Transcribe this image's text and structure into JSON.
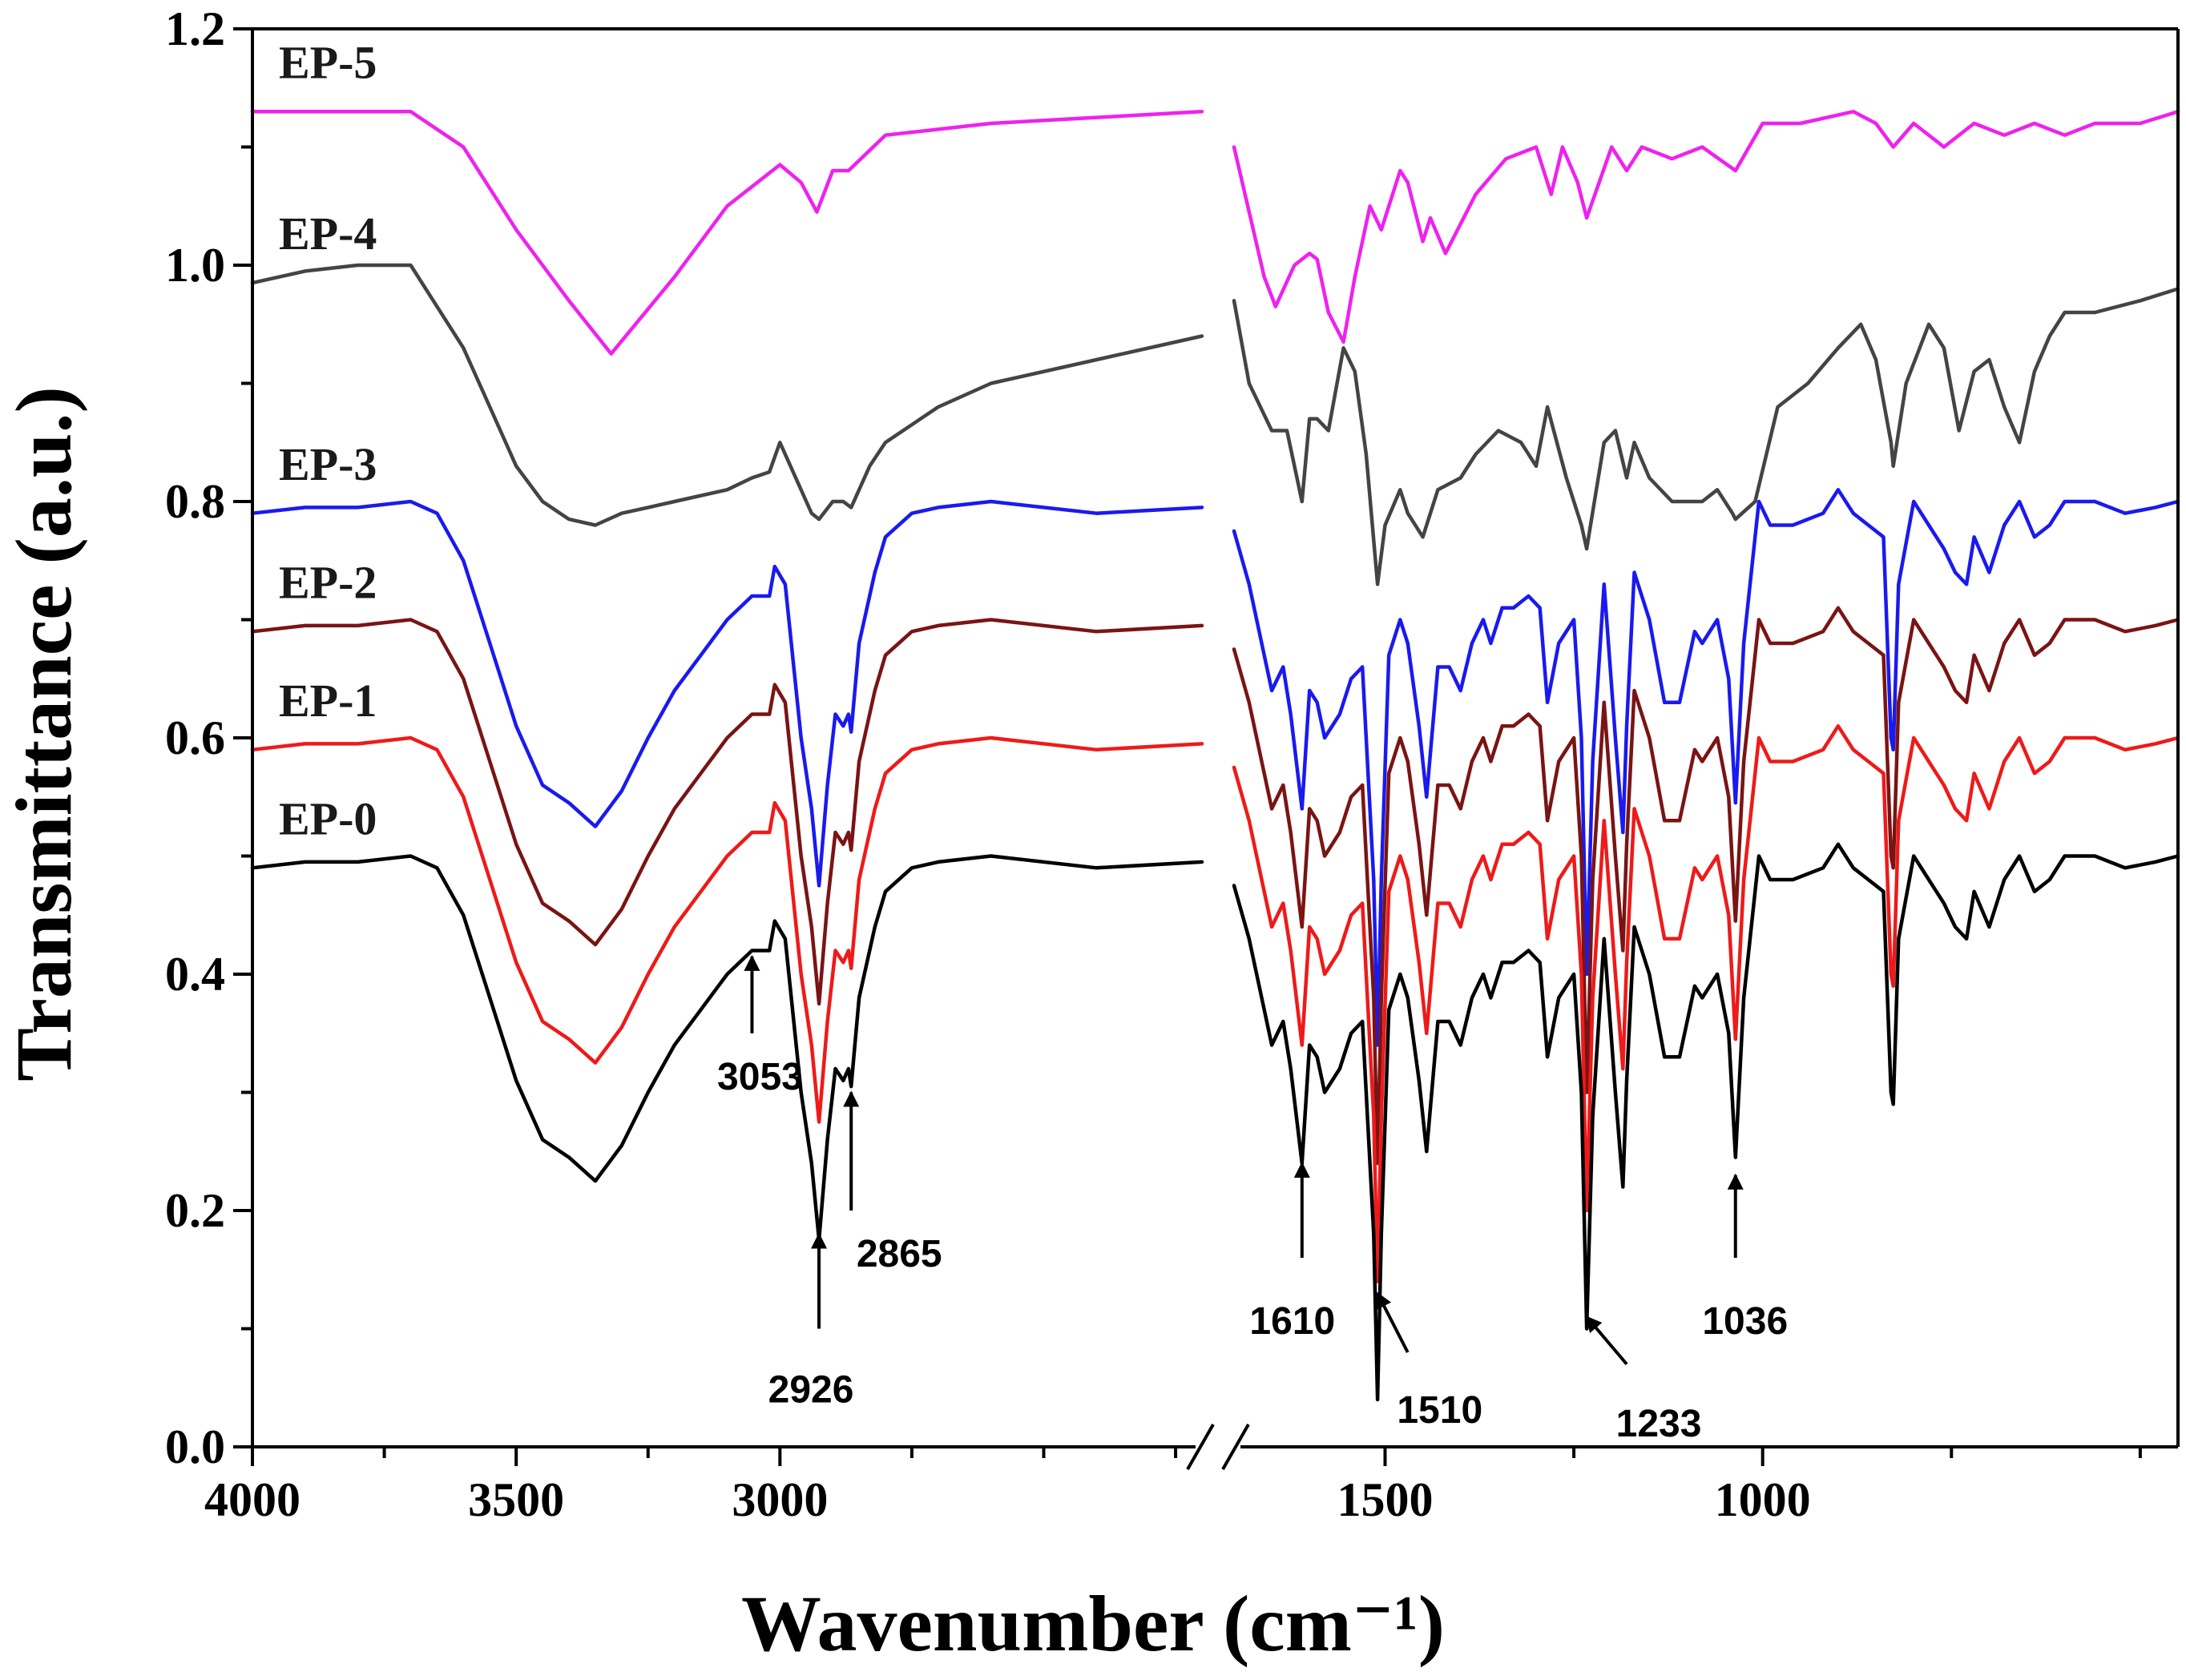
{
  "chart_data": {
    "type": "line",
    "xlabel": "Wavenumber (cm⁻¹)",
    "ylabel": "Transmittance (a.u.)",
    "ylim": [
      0,
      1.2
    ],
    "x_segments": [
      [
        4000,
        2200
      ],
      [
        1700,
        450
      ]
    ],
    "x_ticks": [
      4000,
      3500,
      3000,
      1500,
      1000
    ],
    "x_tick_labels": [
      "4000",
      "3500",
      "3000",
      "1500",
      "1000"
    ],
    "y_ticks": [
      0.0,
      0.2,
      0.4,
      0.6,
      0.8,
      1.0,
      1.2
    ],
    "y_tick_labels": [
      "0.0",
      "0.2",
      "0.4",
      "0.6",
      "0.8",
      "1.0",
      "1.2"
    ],
    "broken_x_axis": true,
    "reference": {
      "name": "EP-0",
      "x": [
        4000,
        3900,
        3800,
        3700,
        3650,
        3600,
        3550,
        3500,
        3450,
        3400,
        3350,
        3300,
        3250,
        3200,
        3150,
        3100,
        3053,
        3020,
        3010,
        2990,
        2960,
        2940,
        2926,
        2910,
        2895,
        2880,
        2870,
        2865,
        2850,
        2820,
        2800,
        2750,
        2700,
        2600,
        2400,
        2200,
        1700,
        1680,
        1650,
        1635,
        1625,
        1610,
        1600,
        1590,
        1580,
        1560,
        1545,
        1530,
        1515,
        1510,
        1505,
        1495,
        1480,
        1470,
        1455,
        1445,
        1430,
        1415,
        1400,
        1385,
        1370,
        1360,
        1345,
        1330,
        1310,
        1295,
        1285,
        1270,
        1250,
        1240,
        1233,
        1225,
        1210,
        1195,
        1185,
        1180,
        1170,
        1150,
        1130,
        1110,
        1090,
        1080,
        1060,
        1045,
        1036,
        1025,
        1005,
        990,
        960,
        920,
        900,
        880,
        860,
        840,
        830,
        827,
        820,
        800,
        780,
        760,
        745,
        730,
        720,
        700,
        680,
        660,
        640,
        620,
        600,
        560,
        520,
        480,
        450
      ],
      "y": [
        0.49,
        0.495,
        0.495,
        0.5,
        0.49,
        0.45,
        0.38,
        0.31,
        0.26,
        0.245,
        0.225,
        0.255,
        0.3,
        0.34,
        0.37,
        0.4,
        0.42,
        0.42,
        0.445,
        0.43,
        0.3,
        0.24,
        0.175,
        0.26,
        0.32,
        0.31,
        0.32,
        0.305,
        0.38,
        0.44,
        0.47,
        0.49,
        0.495,
        0.5,
        0.49,
        0.495,
        0.475,
        0.43,
        0.34,
        0.36,
        0.32,
        0.24,
        0.34,
        0.33,
        0.3,
        0.32,
        0.35,
        0.36,
        0.18,
        0.04,
        0.18,
        0.37,
        0.4,
        0.38,
        0.31,
        0.25,
        0.36,
        0.36,
        0.34,
        0.38,
        0.4,
        0.38,
        0.41,
        0.41,
        0.42,
        0.41,
        0.33,
        0.38,
        0.4,
        0.3,
        0.1,
        0.28,
        0.43,
        0.3,
        0.22,
        0.31,
        0.44,
        0.4,
        0.33,
        0.33,
        0.39,
        0.38,
        0.4,
        0.35,
        0.245,
        0.38,
        0.5,
        0.48,
        0.48,
        0.49,
        0.51,
        0.49,
        0.48,
        0.47,
        0.3,
        0.29,
        0.43,
        0.5,
        0.48,
        0.46,
        0.44,
        0.43,
        0.47,
        0.44,
        0.48,
        0.5,
        0.47,
        0.48,
        0.5,
        0.5,
        0.49,
        0.495,
        0.5
      ]
    },
    "series": [
      {
        "name": "EP-5",
        "label": "EP-5",
        "color": "#ee22ee",
        "offset": 0.63,
        "scale": 0.35,
        "left": [
          [
            4000,
            1.13
          ],
          [
            3800,
            1.13
          ],
          [
            3700,
            1.13
          ],
          [
            3600,
            1.1
          ],
          [
            3500,
            1.03
          ],
          [
            3400,
            0.97
          ],
          [
            3320,
            0.925
          ],
          [
            3200,
            0.99
          ],
          [
            3100,
            1.05
          ],
          [
            3000,
            1.085
          ],
          [
            2960,
            1.07
          ],
          [
            2930,
            1.045
          ],
          [
            2900,
            1.08
          ],
          [
            2870,
            1.08
          ],
          [
            2800,
            1.11
          ],
          [
            2600,
            1.12
          ],
          [
            2400,
            1.125
          ],
          [
            2200,
            1.13
          ]
        ],
        "right": [
          [
            1700,
            1.1
          ],
          [
            1660,
            0.99
          ],
          [
            1645,
            0.965
          ],
          [
            1620,
            1.0
          ],
          [
            1600,
            1.01
          ],
          [
            1590,
            1.005
          ],
          [
            1575,
            0.96
          ],
          [
            1555,
            0.935
          ],
          [
            1540,
            0.99
          ],
          [
            1520,
            1.05
          ],
          [
            1505,
            1.03
          ],
          [
            1480,
            1.08
          ],
          [
            1470,
            1.07
          ],
          [
            1450,
            1.02
          ],
          [
            1440,
            1.04
          ],
          [
            1420,
            1.01
          ],
          [
            1380,
            1.06
          ],
          [
            1340,
            1.09
          ],
          [
            1300,
            1.1
          ],
          [
            1280,
            1.06
          ],
          [
            1265,
            1.1
          ],
          [
            1245,
            1.07
          ],
          [
            1233,
            1.04
          ],
          [
            1200,
            1.1
          ],
          [
            1180,
            1.08
          ],
          [
            1160,
            1.1
          ],
          [
            1120,
            1.09
          ],
          [
            1080,
            1.1
          ],
          [
            1036,
            1.08
          ],
          [
            1000,
            1.12
          ],
          [
            950,
            1.12
          ],
          [
            880,
            1.13
          ],
          [
            850,
            1.12
          ],
          [
            827,
            1.1
          ],
          [
            800,
            1.12
          ],
          [
            760,
            1.1
          ],
          [
            720,
            1.12
          ],
          [
            680,
            1.11
          ],
          [
            640,
            1.12
          ],
          [
            600,
            1.11
          ],
          [
            560,
            1.12
          ],
          [
            500,
            1.12
          ],
          [
            450,
            1.13
          ]
        ]
      },
      {
        "name": "EP-4",
        "label": "EP-4",
        "color": "#444444",
        "offset": 0.5,
        "scale": 0.5,
        "left": [
          [
            4000,
            0.985
          ],
          [
            3900,
            0.995
          ],
          [
            3800,
            1.0
          ],
          [
            3700,
            1.0
          ],
          [
            3600,
            0.93
          ],
          [
            3550,
            0.88
          ],
          [
            3500,
            0.83
          ],
          [
            3450,
            0.8
          ],
          [
            3400,
            0.785
          ],
          [
            3350,
            0.78
          ],
          [
            3300,
            0.79
          ],
          [
            3250,
            0.795
          ],
          [
            3200,
            0.8
          ],
          [
            3100,
            0.81
          ],
          [
            3053,
            0.82
          ],
          [
            3020,
            0.825
          ],
          [
            3000,
            0.85
          ],
          [
            2980,
            0.83
          ],
          [
            2940,
            0.79
          ],
          [
            2926,
            0.785
          ],
          [
            2900,
            0.8
          ],
          [
            2880,
            0.8
          ],
          [
            2865,
            0.795
          ],
          [
            2830,
            0.83
          ],
          [
            2800,
            0.85
          ],
          [
            2700,
            0.88
          ],
          [
            2600,
            0.9
          ],
          [
            2400,
            0.92
          ],
          [
            2200,
            0.94
          ]
        ],
        "right": [
          [
            1700,
            0.97
          ],
          [
            1680,
            0.9
          ],
          [
            1650,
            0.86
          ],
          [
            1630,
            0.86
          ],
          [
            1610,
            0.8
          ],
          [
            1600,
            0.87
          ],
          [
            1590,
            0.87
          ],
          [
            1575,
            0.86
          ],
          [
            1555,
            0.93
          ],
          [
            1540,
            0.91
          ],
          [
            1525,
            0.84
          ],
          [
            1510,
            0.73
          ],
          [
            1500,
            0.78
          ],
          [
            1480,
            0.81
          ],
          [
            1470,
            0.79
          ],
          [
            1450,
            0.77
          ],
          [
            1430,
            0.81
          ],
          [
            1400,
            0.82
          ],
          [
            1380,
            0.84
          ],
          [
            1350,
            0.86
          ],
          [
            1320,
            0.85
          ],
          [
            1300,
            0.83
          ],
          [
            1285,
            0.88
          ],
          [
            1260,
            0.82
          ],
          [
            1240,
            0.78
          ],
          [
            1233,
            0.76
          ],
          [
            1210,
            0.85
          ],
          [
            1195,
            0.86
          ],
          [
            1180,
            0.82
          ],
          [
            1170,
            0.85
          ],
          [
            1150,
            0.82
          ],
          [
            1120,
            0.8
          ],
          [
            1100,
            0.8
          ],
          [
            1080,
            0.8
          ],
          [
            1060,
            0.81
          ],
          [
            1040,
            0.79
          ],
          [
            1036,
            0.785
          ],
          [
            1010,
            0.8
          ],
          [
            980,
            0.88
          ],
          [
            940,
            0.9
          ],
          [
            900,
            0.93
          ],
          [
            870,
            0.95
          ],
          [
            850,
            0.92
          ],
          [
            830,
            0.85
          ],
          [
            827,
            0.83
          ],
          [
            810,
            0.9
          ],
          [
            780,
            0.95
          ],
          [
            760,
            0.93
          ],
          [
            740,
            0.86
          ],
          [
            720,
            0.91
          ],
          [
            700,
            0.92
          ],
          [
            680,
            0.88
          ],
          [
            660,
            0.85
          ],
          [
            640,
            0.91
          ],
          [
            620,
            0.94
          ],
          [
            600,
            0.96
          ],
          [
            560,
            0.96
          ],
          [
            500,
            0.97
          ],
          [
            450,
            0.98
          ]
        ]
      },
      {
        "name": "EP-3",
        "label": "EP-3",
        "color": "#1a1aee",
        "offset": 0.3,
        "scale": 1.0
      },
      {
        "name": "EP-2",
        "label": "EP-2",
        "color": "#7a1414",
        "offset": 0.2,
        "scale": 1.0
      },
      {
        "name": "EP-1",
        "label": "EP-1",
        "color": "#ee1a1a",
        "offset": 0.1,
        "scale": 1.0
      },
      {
        "name": "EP-0",
        "label": "EP-0",
        "color": "#000000",
        "offset": 0.0,
        "scale": 1.0
      }
    ],
    "annotations": [
      {
        "text": "3053",
        "arrow_to": [
          3053,
          0.415
        ],
        "arrow_from": [
          3053,
          0.35
        ]
      },
      {
        "text": "2926",
        "arrow_to": [
          2926,
          0.18
        ],
        "arrow_from": [
          2926,
          0.1
        ]
      },
      {
        "text": "2865",
        "arrow_to": [
          2865,
          0.3
        ],
        "arrow_from": [
          2865,
          0.2
        ]
      },
      {
        "text": "1610",
        "arrow_to": [
          1610,
          0.24
        ],
        "arrow_from": [
          1610,
          0.16
        ]
      },
      {
        "text": "1510",
        "arrow_to": [
          1510,
          0.13
        ],
        "arrow_from": [
          1470,
          0.08
        ]
      },
      {
        "text": "1233",
        "arrow_to": [
          1233,
          0.11
        ],
        "arrow_from": [
          1180,
          0.07
        ]
      },
      {
        "text": "1036",
        "arrow_to": [
          1036,
          0.23
        ],
        "arrow_from": [
          1036,
          0.16
        ]
      }
    ]
  }
}
